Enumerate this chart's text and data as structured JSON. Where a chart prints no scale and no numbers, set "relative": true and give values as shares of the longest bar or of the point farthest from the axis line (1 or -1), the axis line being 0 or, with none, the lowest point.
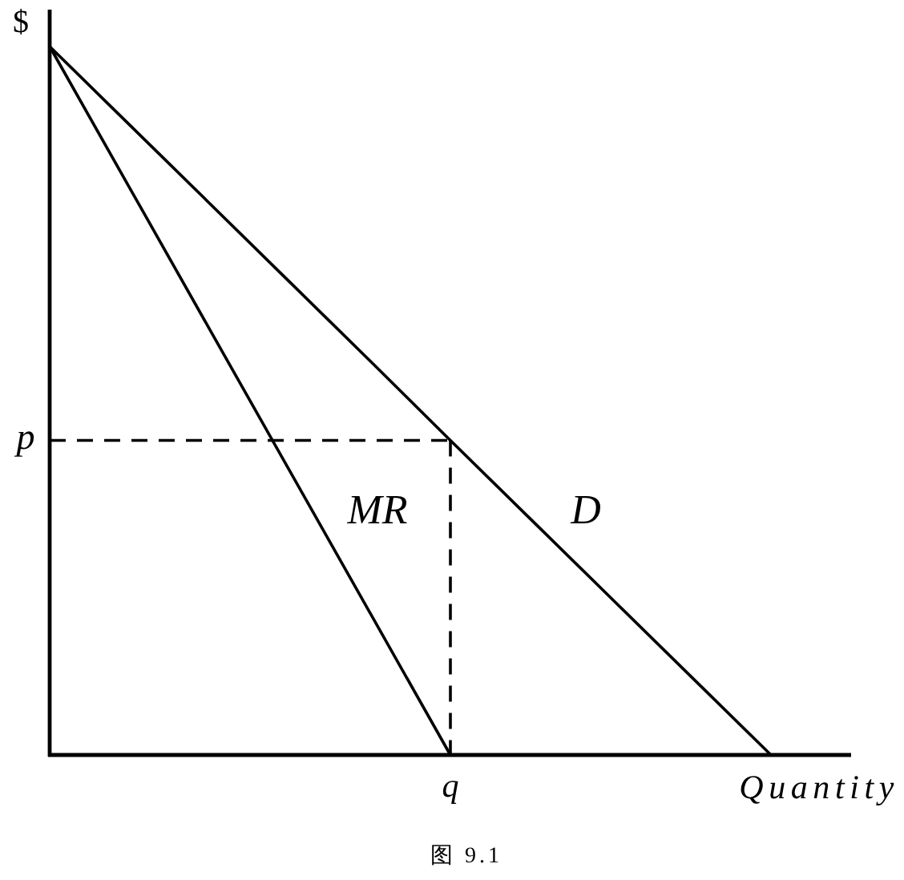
{
  "chart_data": {
    "type": "line",
    "relative": true,
    "xlabel": "Quantity",
    "ylabel": "$",
    "categories": [
      null,
      null,
      null,
      null,
      null,
      null,
      null,
      null,
      null,
      null,
      null
    ],
    "series": [
      {
        "name": "D",
        "color": "#000000",
        "values": [
          1,
          0.889,
          0.778,
          0.667,
          0.556,
          0.444,
          0.333,
          0.222,
          0.111,
          0,
          null
        ]
      },
      {
        "name": "MR",
        "color": "#000000",
        "values": [
          1,
          0.8,
          0.6,
          0.4,
          0.2,
          0,
          null,
          null,
          null,
          null,
          null
        ]
      }
    ],
    "ref_lines": [
      {
        "axis": "y",
        "value": 0.444,
        "label": "p",
        "line_style": "dashed",
        "color": "#000000"
      }
    ],
    "annotations": [
      {
        "text": "q",
        "y": 0
      },
      "图 9.1"
    ]
  }
}
